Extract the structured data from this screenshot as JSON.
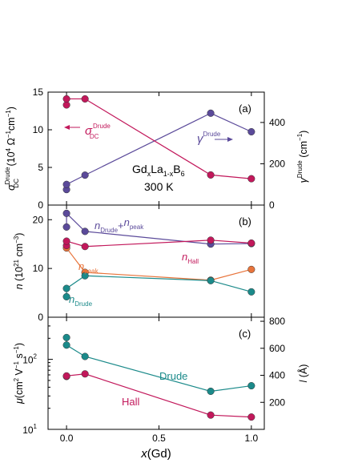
{
  "colors": {
    "magenta": "#c2185b",
    "purple": "#5b4a9a",
    "orange": "#e8743b",
    "teal": "#1b8a8a"
  },
  "x_axis": {
    "label_italic": "x",
    "label_rest": "(Gd)",
    "range": [
      -0.1,
      1.07
    ],
    "ticks": [
      0.0,
      0.5,
      1.0
    ],
    "tick_labels": [
      "0.0",
      "0.5",
      "1.0"
    ]
  },
  "panels": {
    "a": {
      "label": "(a)",
      "note_formula": [
        "Gd",
        "x",
        "La",
        "1-x",
        "B",
        "6"
      ],
      "note_temp": "300 K",
      "left_axis_label": "σ",
      "left_axis_sup": "Drude",
      "left_axis_sub": "DC",
      "left_axis_units": "(10",
      "left_axis_units_sup": "4",
      "left_axis_units_rest": " Ω",
      "left_axis_units_sup2": "−1",
      "left_axis_units_rest2": "cm",
      "left_axis_units_sup3": "−1",
      "left_axis_units_close": ")",
      "right_axis_label": "γ",
      "right_axis_sup": "Drude",
      "right_axis_units": " (cm",
      "right_axis_units_sup": "−1",
      "right_axis_units_close": ")",
      "sigma_label": "σ",
      "sigma_sup": "Drude",
      "sigma_sub": "DC",
      "gamma_label": "γ",
      "gamma_sup": "Drude",
      "left_ticks": [
        0,
        5,
        10,
        15
      ],
      "right_ticks": [
        0,
        200,
        400
      ]
    },
    "b": {
      "label": "(b)",
      "ylabel_italic": "n",
      "ylabel_rest": " (10",
      "ylabel_sup": "21",
      "ylabel_rest2": " cm",
      "ylabel_sup2": "−3",
      "ylabel_close": ")",
      "ticks": [
        0,
        10,
        20
      ],
      "label_drude_peak": [
        "n",
        "Drude",
        "+",
        "n",
        "peak"
      ],
      "label_hall": [
        "n",
        "Hall"
      ],
      "label_peak": [
        "n",
        "peak"
      ],
      "label_drude": [
        "n",
        "Drude"
      ]
    },
    "c": {
      "label": "(c)",
      "ylabel_italic": "μ",
      "ylabel_rest": "(cm",
      "ylabel_sup": "2",
      "ylabel_rest2": " V",
      "ylabel_sup2": "−1",
      "ylabel_rest3": " s",
      "ylabel_sup3": "−1",
      "ylabel_close": ")",
      "right_label_italic": "l",
      "right_label_rest": " (Å)",
      "left_tick_values": [
        10,
        100
      ],
      "left_tick_base": "10",
      "left_tick_exps": [
        "1",
        "2"
      ],
      "right_ticks": [
        200,
        400,
        600,
        800
      ],
      "label_drude": "Drude",
      "label_hall": "Hall"
    }
  },
  "chart_data": [
    {
      "type": "line",
      "panel": "a",
      "xlabel": "x(Gd)",
      "ylabel": "σ_DC^Drude (10^4 Ω^−1 cm^−1)",
      "ylim": [
        0,
        15
      ],
      "y2label": "γ^Drude (cm^−1)",
      "y2lim": [
        0,
        547
      ],
      "series": [
        {
          "name": "σ_DC^Drude",
          "axis": "left",
          "color": "#c2185b",
          "x": [
            0.0,
            0.0,
            0.1,
            0.78,
            1.0
          ],
          "y": [
            13.3,
            14.1,
            14.1,
            4.0,
            3.5
          ]
        },
        {
          "name": "γ^Drude",
          "axis": "right",
          "color": "#5b4a9a",
          "x": [
            0.0,
            0.0,
            0.1,
            0.78,
            1.0
          ],
          "y": [
            75,
            100,
            145,
            445,
            355
          ]
        }
      ]
    },
    {
      "type": "line",
      "panel": "b",
      "ylabel": "n (10^21 cm^−3)",
      "ylim": [
        0,
        23
      ],
      "series": [
        {
          "name": "n_Drude+n_peak",
          "color": "#5b4a9a",
          "x": [
            0.0,
            0.0,
            0.1,
            0.78,
            1.0
          ],
          "y": [
            18.5,
            21.3,
            17.6,
            15.0,
            15.1
          ]
        },
        {
          "name": "n_Hall",
          "color": "#c2185b",
          "x": [
            0.0,
            0.0,
            0.1,
            0.78,
            1.0
          ],
          "y": [
            14.7,
            15.6,
            14.5,
            15.8,
            15.2
          ]
        },
        {
          "name": "n_peak",
          "color": "#e8743b",
          "x": [
            0.0,
            0.1,
            0.78,
            1.0
          ],
          "y": [
            14.2,
            9.2,
            7.6,
            9.8
          ]
        },
        {
          "name": "n_Drude",
          "color": "#1b8a8a",
          "x": [
            0.0,
            0.0,
            0.1,
            0.78,
            1.0
          ],
          "y": [
            4.2,
            5.9,
            8.5,
            7.5,
            5.2
          ]
        }
      ]
    },
    {
      "type": "line",
      "panel": "c",
      "ylabel": "μ (cm^2 V^−1 s^−1)",
      "yscale": "log",
      "ylim": [
        10,
        400
      ],
      "y2label": "l (Å)",
      "y2lim": [
        0,
        830
      ],
      "series": [
        {
          "name": "Drude",
          "color": "#1b8a8a",
          "x": [
            0.0,
            0.0,
            0.1,
            0.78,
            1.0
          ],
          "y": [
            205,
            160,
            110,
            35,
            42
          ]
        },
        {
          "name": "Hall",
          "color": "#c2185b",
          "x": [
            0.0,
            0.0,
            0.1,
            0.78,
            1.0
          ],
          "y": [
            57,
            58,
            62,
            16,
            15
          ]
        }
      ]
    }
  ]
}
